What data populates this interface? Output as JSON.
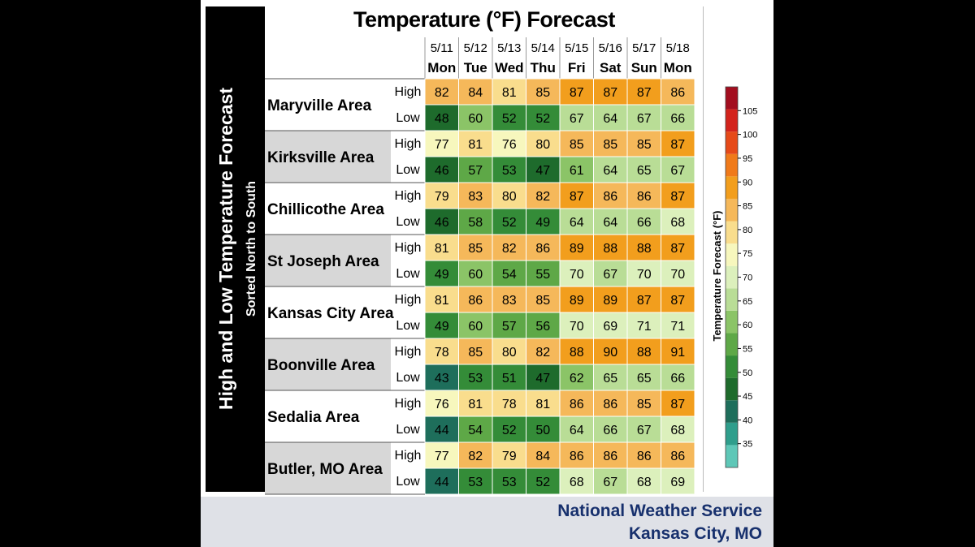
{
  "side": {
    "title": "High and Low Temperature Forecast",
    "subtitle": "Sorted North to South"
  },
  "footer": {
    "line1": "National Weather Service",
    "line2": "Kansas City, MO"
  },
  "chart_data": {
    "type": "heatmap",
    "title": "Temperature (°F) Forecast",
    "dates": [
      "5/11",
      "5/12",
      "5/13",
      "5/14",
      "5/15",
      "5/16",
      "5/17",
      "5/18"
    ],
    "days": [
      "Mon",
      "Tue",
      "Wed",
      "Thu",
      "Fri",
      "Sat",
      "Sun",
      "Mon"
    ],
    "row_labels": {
      "high": "High",
      "low": "Low"
    },
    "areas": [
      {
        "name": "Maryville Area",
        "high": [
          82,
          84,
          81,
          85,
          87,
          87,
          87,
          86
        ],
        "low": [
          48,
          60,
          52,
          52,
          67,
          64,
          67,
          66
        ]
      },
      {
        "name": "Kirksville Area",
        "high": [
          77,
          81,
          76,
          80,
          85,
          85,
          85,
          87
        ],
        "low": [
          46,
          57,
          53,
          47,
          61,
          64,
          65,
          67
        ]
      },
      {
        "name": "Chillicothe Area",
        "high": [
          79,
          83,
          80,
          82,
          87,
          86,
          86,
          87
        ],
        "low": [
          46,
          58,
          52,
          49,
          64,
          64,
          66,
          68
        ]
      },
      {
        "name": "St Joseph Area",
        "high": [
          81,
          85,
          82,
          86,
          89,
          88,
          88,
          87
        ],
        "low": [
          49,
          60,
          54,
          55,
          70,
          67,
          70,
          70
        ]
      },
      {
        "name": "Kansas City Area",
        "high": [
          81,
          86,
          83,
          85,
          89,
          89,
          87,
          87
        ],
        "low": [
          49,
          60,
          57,
          56,
          70,
          69,
          71,
          71
        ]
      },
      {
        "name": "Boonville Area",
        "high": [
          78,
          85,
          80,
          82,
          88,
          90,
          88,
          91
        ],
        "low": [
          43,
          53,
          51,
          47,
          62,
          65,
          65,
          66
        ]
      },
      {
        "name": "Sedalia Area",
        "high": [
          76,
          81,
          78,
          81,
          86,
          86,
          85,
          87
        ],
        "low": [
          44,
          54,
          52,
          50,
          64,
          66,
          67,
          68
        ]
      },
      {
        "name": "Butler, MO Area",
        "high": [
          77,
          82,
          79,
          84,
          86,
          86,
          86,
          86
        ],
        "low": [
          44,
          53,
          53,
          52,
          68,
          67,
          68,
          69
        ]
      }
    ],
    "colorbar": {
      "label": "Temperature Forecast (°F)",
      "min": 30,
      "max": 110,
      "ticks": [
        35,
        40,
        45,
        50,
        55,
        60,
        65,
        70,
        75,
        80,
        85,
        90,
        95,
        100,
        105
      ],
      "colors": [
        "#5ec7b7",
        "#2f9e8c",
        "#1e6e5b",
        "#1e6b2c",
        "#348c38",
        "#5ea847",
        "#8bc467",
        "#b9dd96",
        "#dcf0bc",
        "#f7f7bd",
        "#f9dd8d",
        "#f5b85a",
        "#f29e1d",
        "#f07a1a",
        "#e64a19",
        "#d3231c",
        "#a30e1f"
      ]
    },
    "colors": {
      "high_label": "#b1201e",
      "low_label": "#2436a8",
      "shaded_row": "#d7d7d7"
    }
  }
}
